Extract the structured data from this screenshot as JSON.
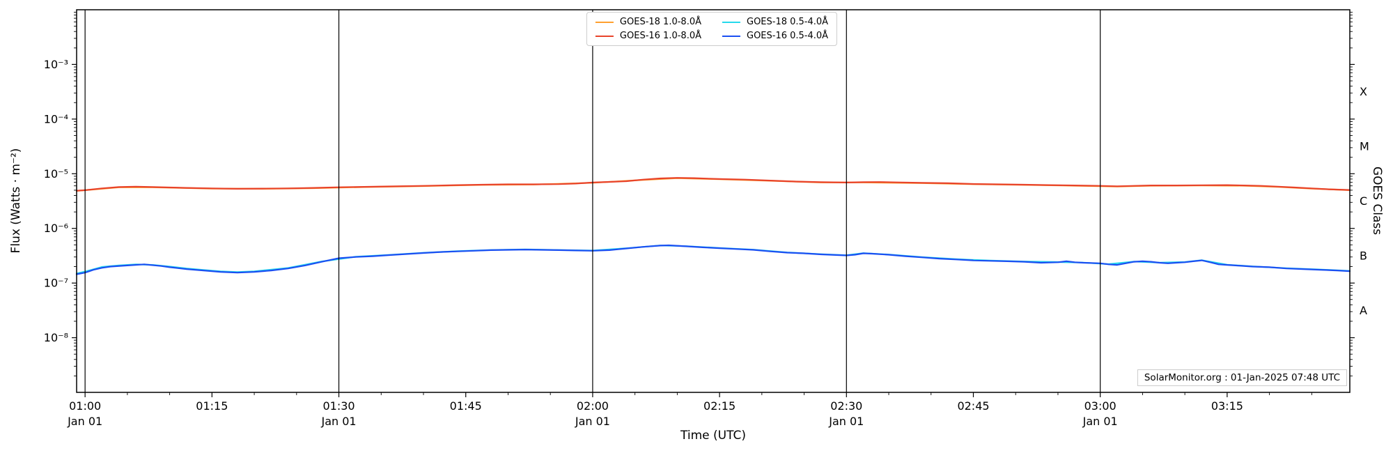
{
  "chart_data": {
    "type": "line",
    "title": "",
    "xlabel": "Time (UTC)",
    "ylabel": "Flux (Watts · m⁻²)",
    "ylabel_right": "GOES Class",
    "watermark": "SolarMonitor.org : 01-Jan-2025 07:48 UTC",
    "x_unit": "minutes after 01:00 UTC",
    "x_range": [
      -1,
      149.5
    ],
    "y_log_range": [
      -9,
      -2
    ],
    "grid": false,
    "legend_position": "top-center",
    "x_ticks": [
      {
        "m": 0,
        "label": "01:00",
        "sub": "Jan 01"
      },
      {
        "m": 15,
        "label": "01:15"
      },
      {
        "m": 30,
        "label": "01:30",
        "sub": "Jan 01"
      },
      {
        "m": 45,
        "label": "01:45"
      },
      {
        "m": 60,
        "label": "02:00",
        "sub": "Jan 01"
      },
      {
        "m": 75,
        "label": "02:15"
      },
      {
        "m": 90,
        "label": "02:30",
        "sub": "Jan 01"
      },
      {
        "m": 105,
        "label": "02:45"
      },
      {
        "m": 120,
        "label": "03:00",
        "sub": "Jan 01"
      },
      {
        "m": 135,
        "label": "03:15"
      }
    ],
    "y_ticks": [
      {
        "log": -3,
        "label": "10⁻³"
      },
      {
        "log": -4,
        "label": "10⁻⁴"
      },
      {
        "log": -5,
        "label": "10⁻⁵"
      },
      {
        "log": -6,
        "label": "10⁻⁶"
      },
      {
        "log": -7,
        "label": "10⁻⁷"
      },
      {
        "log": -8,
        "label": "10⁻⁸"
      }
    ],
    "goes_classes": [
      {
        "log": -3.5,
        "label": "X"
      },
      {
        "log": -4.5,
        "label": "M"
      },
      {
        "log": -5.5,
        "label": "C"
      },
      {
        "log": -6.5,
        "label": "B"
      },
      {
        "log": -7.5,
        "label": "A"
      }
    ],
    "day_lines_minutes": [
      0,
      30,
      60,
      90,
      120
    ],
    "draw_order": [
      0,
      2,
      1,
      3
    ],
    "series": [
      {
        "id": "goes18-long",
        "name": "GOES-18 1.0-8.0Å",
        "color": "#ffa02e",
        "points": [
          [
            -1,
            4.85e-06
          ],
          [
            4,
            5.64e-06
          ],
          [
            8,
            5.64e-06
          ],
          [
            15,
            5.35e-06
          ],
          [
            21,
            5.3e-06
          ],
          [
            27,
            5.45e-06
          ],
          [
            33,
            5.7e-06
          ],
          [
            40,
            5.94e-06
          ],
          [
            47,
            6.24e-06
          ],
          [
            53,
            6.34e-06
          ],
          [
            60,
            6.83e-06
          ],
          [
            66,
            7.72e-06
          ],
          [
            70,
            8.32e-06
          ],
          [
            75,
            7.92e-06
          ],
          [
            81,
            7.43e-06
          ],
          [
            87,
            6.93e-06
          ],
          [
            92,
            6.93e-06
          ],
          [
            99,
            6.73e-06
          ],
          [
            105,
            6.44e-06
          ],
          [
            111,
            6.24e-06
          ],
          [
            117,
            6.04e-06
          ],
          [
            122,
            5.84e-06
          ],
          [
            126,
            6.04e-06
          ],
          [
            132,
            6.09e-06
          ],
          [
            137,
            6.04e-06
          ],
          [
            141,
            5.74e-06
          ],
          [
            145,
            5.35e-06
          ],
          [
            149.5,
            5e-06
          ]
        ]
      },
      {
        "id": "goes16-long",
        "name": "GOES-16 1.0-8.0Å",
        "color": "#e8432a",
        "points": [
          [
            -1,
            4.9e-06
          ],
          [
            0,
            5e-06
          ],
          [
            2,
            5.4e-06
          ],
          [
            4,
            5.7e-06
          ],
          [
            6,
            5.8e-06
          ],
          [
            8,
            5.7e-06
          ],
          [
            10,
            5.6e-06
          ],
          [
            12,
            5.5e-06
          ],
          [
            15,
            5.4e-06
          ],
          [
            18,
            5.3e-06
          ],
          [
            21,
            5.35e-06
          ],
          [
            24,
            5.4e-06
          ],
          [
            27,
            5.5e-06
          ],
          [
            30,
            5.65e-06
          ],
          [
            33,
            5.75e-06
          ],
          [
            36,
            5.85e-06
          ],
          [
            40,
            6e-06
          ],
          [
            44,
            6.2e-06
          ],
          [
            47,
            6.3e-06
          ],
          [
            50,
            6.4e-06
          ],
          [
            53,
            6.4e-06
          ],
          [
            56,
            6.45e-06
          ],
          [
            58,
            6.6e-06
          ],
          [
            60,
            6.9e-06
          ],
          [
            62,
            7.1e-06
          ],
          [
            64,
            7.3e-06
          ],
          [
            66,
            7.8e-06
          ],
          [
            68,
            8.2e-06
          ],
          [
            70,
            8.4e-06
          ],
          [
            72,
            8.3e-06
          ],
          [
            75,
            8e-06
          ],
          [
            78,
            7.8e-06
          ],
          [
            81,
            7.5e-06
          ],
          [
            84,
            7.2e-06
          ],
          [
            87,
            7e-06
          ],
          [
            90,
            6.9e-06
          ],
          [
            92,
            7e-06
          ],
          [
            94,
            7.05e-06
          ],
          [
            96,
            6.95e-06
          ],
          [
            99,
            6.8e-06
          ],
          [
            102,
            6.7e-06
          ],
          [
            105,
            6.5e-06
          ],
          [
            108,
            6.4e-06
          ],
          [
            111,
            6.3e-06
          ],
          [
            114,
            6.2e-06
          ],
          [
            117,
            6.1e-06
          ],
          [
            120,
            6e-06
          ],
          [
            122,
            5.9e-06
          ],
          [
            124,
            6e-06
          ],
          [
            126,
            6.1e-06
          ],
          [
            129,
            6.1e-06
          ],
          [
            132,
            6.15e-06
          ],
          [
            135,
            6.2e-06
          ],
          [
            137,
            6.1e-06
          ],
          [
            139,
            6e-06
          ],
          [
            141,
            5.8e-06
          ],
          [
            143,
            5.6e-06
          ],
          [
            145,
            5.4e-06
          ],
          [
            147,
            5.2e-06
          ],
          [
            149.5,
            5.05e-06
          ]
        ]
      },
      {
        "id": "goes18-short",
        "name": "GOES-18 0.5-4.0Å",
        "color": "#25d9ec",
        "points": [
          [
            -1,
            1.5e-07
          ],
          [
            0,
            1.62e-07
          ],
          [
            2,
            1.97e-07
          ],
          [
            4,
            2.1e-07
          ],
          [
            6,
            2.2e-07
          ],
          [
            8,
            2.15e-07
          ],
          [
            10,
            2e-07
          ],
          [
            12,
            1.85e-07
          ],
          [
            14,
            1.74e-07
          ],
          [
            16,
            1.64e-07
          ],
          [
            18,
            1.59e-07
          ],
          [
            20,
            1.64e-07
          ],
          [
            24,
            1.89e-07
          ],
          [
            28,
            2.49e-07
          ],
          [
            32,
            3.03e-07
          ],
          [
            36,
            3.28e-07
          ],
          [
            40,
            3.58e-07
          ],
          [
            44,
            3.83e-07
          ],
          [
            48,
            4.03e-07
          ],
          [
            52,
            4.13e-07
          ],
          [
            56,
            4.03e-07
          ],
          [
            60,
            3.93e-07
          ],
          [
            64,
            4.33e-07
          ],
          [
            68,
            4.88e-07
          ],
          [
            71,
            4.73e-07
          ],
          [
            75,
            4.38e-07
          ],
          [
            79,
            4.08e-07
          ],
          [
            83,
            3.63e-07
          ],
          [
            87,
            3.38e-07
          ],
          [
            90,
            3.23e-07
          ],
          [
            92,
            3.53e-07
          ],
          [
            95,
            3.33e-07
          ],
          [
            99,
            2.98e-07
          ],
          [
            103,
            2.73e-07
          ],
          [
            107,
            2.58e-07
          ],
          [
            111,
            2.48e-07
          ],
          [
            115,
            2.42e-07
          ],
          [
            118,
            2.37e-07
          ],
          [
            121,
            2.22e-07
          ],
          [
            124,
            2.47e-07
          ],
          [
            127,
            2.37e-07
          ],
          [
            130,
            2.42e-07
          ],
          [
            132,
            2.62e-07
          ],
          [
            135,
            2.17e-07
          ],
          [
            138,
            2.02e-07
          ],
          [
            142,
            1.87e-07
          ],
          [
            146,
            1.77e-07
          ],
          [
            149.5,
            1.67e-07
          ]
        ]
      },
      {
        "id": "goes16-short",
        "name": "GOES-16 0.5-4.0Å",
        "color": "#1b4ff2",
        "points": [
          [
            -1,
            1.45e-07
          ],
          [
            0,
            1.55e-07
          ],
          [
            1,
            1.75e-07
          ],
          [
            2,
            1.9e-07
          ],
          [
            3,
            2e-07
          ],
          [
            5,
            2.1e-07
          ],
          [
            7,
            2.2e-07
          ],
          [
            9,
            2.05e-07
          ],
          [
            10,
            1.95e-07
          ],
          [
            12,
            1.8e-07
          ],
          [
            14,
            1.7e-07
          ],
          [
            16,
            1.6e-07
          ],
          [
            18,
            1.55e-07
          ],
          [
            20,
            1.6e-07
          ],
          [
            22,
            1.7e-07
          ],
          [
            24,
            1.85e-07
          ],
          [
            26,
            2.1e-07
          ],
          [
            28,
            2.45e-07
          ],
          [
            30,
            2.85e-07
          ],
          [
            32,
            3e-07
          ],
          [
            34,
            3.1e-07
          ],
          [
            36,
            3.25e-07
          ],
          [
            38,
            3.4e-07
          ],
          [
            40,
            3.55e-07
          ],
          [
            42,
            3.7e-07
          ],
          [
            44,
            3.8e-07
          ],
          [
            46,
            3.9e-07
          ],
          [
            48,
            4e-07
          ],
          [
            50,
            4.05e-07
          ],
          [
            52,
            4.1e-07
          ],
          [
            54,
            4.05e-07
          ],
          [
            56,
            4e-07
          ],
          [
            58,
            3.95e-07
          ],
          [
            60,
            3.9e-07
          ],
          [
            62,
            4e-07
          ],
          [
            64,
            4.3e-07
          ],
          [
            66,
            4.6e-07
          ],
          [
            68,
            4.85e-07
          ],
          [
            69,
            4.9e-07
          ],
          [
            71,
            4.7e-07
          ],
          [
            73,
            4.5e-07
          ],
          [
            75,
            4.35e-07
          ],
          [
            77,
            4.2e-07
          ],
          [
            79,
            4.05e-07
          ],
          [
            81,
            3.8e-07
          ],
          [
            83,
            3.6e-07
          ],
          [
            85,
            3.5e-07
          ],
          [
            87,
            3.35e-07
          ],
          [
            89,
            3.25e-07
          ],
          [
            90,
            3.2e-07
          ],
          [
            91,
            3.3e-07
          ],
          [
            92,
            3.5e-07
          ],
          [
            93,
            3.45e-07
          ],
          [
            95,
            3.3e-07
          ],
          [
            97,
            3.1e-07
          ],
          [
            99,
            2.95e-07
          ],
          [
            101,
            2.8e-07
          ],
          [
            103,
            2.7e-07
          ],
          [
            105,
            2.6e-07
          ],
          [
            107,
            2.55e-07
          ],
          [
            109,
            2.5e-07
          ],
          [
            111,
            2.45e-07
          ],
          [
            113,
            2.35e-07
          ],
          [
            115,
            2.4e-07
          ],
          [
            116,
            2.5e-07
          ],
          [
            117,
            2.4e-07
          ],
          [
            118,
            2.35e-07
          ],
          [
            120,
            2.3e-07
          ],
          [
            121,
            2.2e-07
          ],
          [
            122,
            2.15e-07
          ],
          [
            123,
            2.3e-07
          ],
          [
            124,
            2.45e-07
          ],
          [
            125,
            2.5e-07
          ],
          [
            126,
            2.45e-07
          ],
          [
            127,
            2.35e-07
          ],
          [
            128,
            2.3e-07
          ],
          [
            129,
            2.35e-07
          ],
          [
            130,
            2.4e-07
          ],
          [
            131,
            2.5e-07
          ],
          [
            132,
            2.6e-07
          ],
          [
            133,
            2.4e-07
          ],
          [
            134,
            2.2e-07
          ],
          [
            135,
            2.15e-07
          ],
          [
            136,
            2.1e-07
          ],
          [
            138,
            2e-07
          ],
          [
            140,
            1.95e-07
          ],
          [
            142,
            1.85e-07
          ],
          [
            144,
            1.8e-07
          ],
          [
            146,
            1.75e-07
          ],
          [
            148,
            1.7e-07
          ],
          [
            149.5,
            1.65e-07
          ]
        ]
      }
    ]
  }
}
